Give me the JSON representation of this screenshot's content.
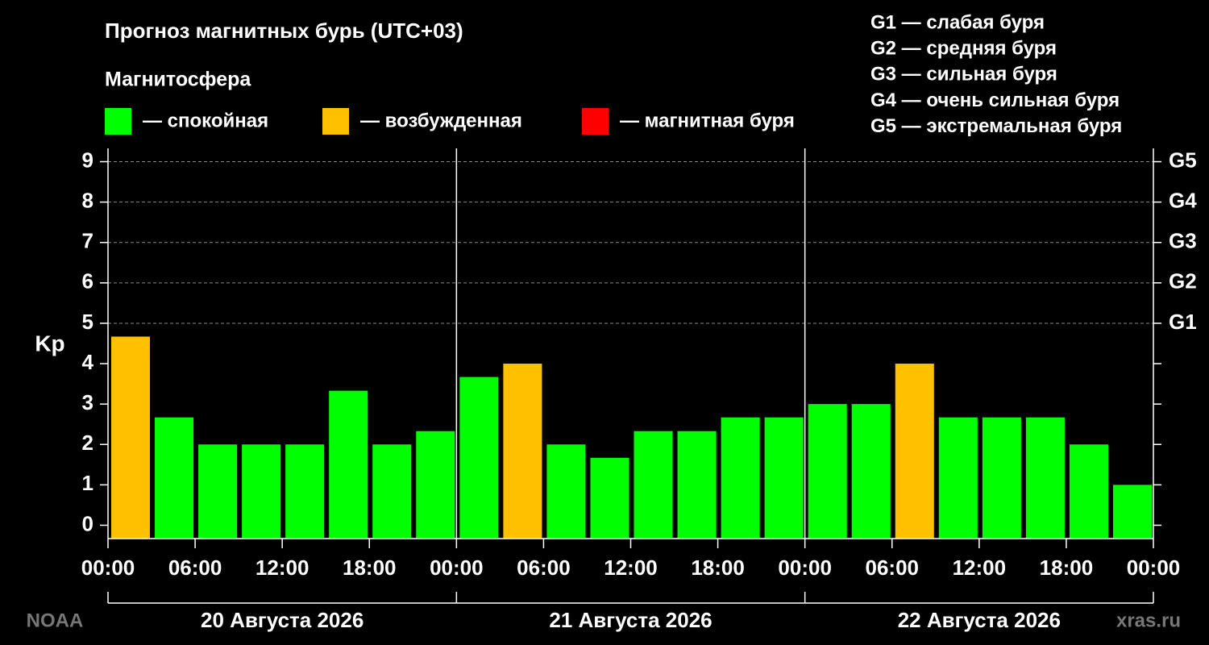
{
  "chart_data": {
    "type": "bar",
    "title": "Прогноз магнитных бурь (UTC+03)",
    "legend": {
      "title": "Магнитосфера",
      "items": [
        {
          "color": "#00ff00",
          "label": "— спокойная"
        },
        {
          "color": "#ffc000",
          "label": "— возбужденная"
        },
        {
          "color": "#ff0000",
          "label": "— магнитная буря"
        }
      ]
    },
    "scale_legend": [
      "G1 — слабая буря",
      "G2 — средняя буря",
      "G3 — сильная буря",
      "G4 — очень сильная буря",
      "G5 — экстремальная буря"
    ],
    "y_label": "Kp",
    "x": [
      0,
      3,
      6,
      9,
      12,
      15,
      18,
      21,
      24,
      27,
      30,
      33,
      36,
      39,
      42,
      45,
      48,
      51,
      54,
      57,
      60,
      63,
      66,
      69
    ],
    "values": [
      4.67,
      2.67,
      2,
      2,
      2,
      3.33,
      2,
      2.33,
      3.67,
      4,
      2,
      1.67,
      2.33,
      2.33,
      2.67,
      2.67,
      3,
      3,
      4,
      2.67,
      2.67,
      2.67,
      2,
      1
    ],
    "colors": [
      "#ffc000",
      "#00ff00",
      "#00ff00",
      "#00ff00",
      "#00ff00",
      "#00ff00",
      "#00ff00",
      "#00ff00",
      "#00ff00",
      "#ffc000",
      "#00ff00",
      "#00ff00",
      "#00ff00",
      "#00ff00",
      "#00ff00",
      "#00ff00",
      "#00ff00",
      "#00ff00",
      "#ffc000",
      "#00ff00",
      "#00ff00",
      "#00ff00",
      "#00ff00",
      "#00ff00"
    ],
    "xlim": [
      0,
      72
    ],
    "xticks": [
      {
        "value": 0,
        "label": "00:00"
      },
      {
        "value": 6,
        "label": "06:00"
      },
      {
        "value": 12,
        "label": "12:00"
      },
      {
        "value": 18,
        "label": "18:00"
      },
      {
        "value": 24,
        "label": "00:00"
      },
      {
        "value": 30,
        "label": "06:00"
      },
      {
        "value": 36,
        "label": "12:00"
      },
      {
        "value": 42,
        "label": "18:00"
      },
      {
        "value": 48,
        "label": "00:00"
      },
      {
        "value": 54,
        "label": "06:00"
      },
      {
        "value": 60,
        "label": "12:00"
      },
      {
        "value": 66,
        "label": "18:00"
      },
      {
        "value": 72,
        "label": "00:00"
      }
    ],
    "ylim": [
      -0.33,
      9.33
    ],
    "yticks": [
      0,
      1,
      2,
      3,
      4,
      5,
      6,
      7,
      8,
      9
    ],
    "y2ticks": [
      {
        "value": 5,
        "label": "G1"
      },
      {
        "value": 6,
        "label": "G2"
      },
      {
        "value": 7,
        "label": "G3"
      },
      {
        "value": 8,
        "label": "G4"
      },
      {
        "value": 9,
        "label": "G5"
      }
    ],
    "days": [
      "20 Августа 2026",
      "21 Августа 2026",
      "22 Августа 2026"
    ],
    "source": "NOAA",
    "site": "xras.ru"
  }
}
